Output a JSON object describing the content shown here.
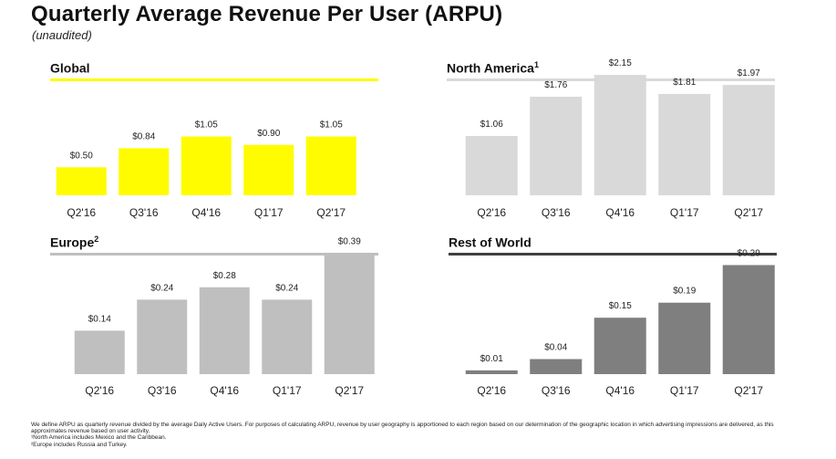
{
  "header": {
    "title": "Quarterly Average Revenue Per User (ARPU)",
    "subtitle": "(unaudited)"
  },
  "colors": {
    "global": "#FFFC00",
    "north_america": "#D9D9D9",
    "europe": "#BFBFBF",
    "rest_of_world": "#7F7F7F",
    "text": "#111111"
  },
  "chart_data": [
    {
      "id": "global",
      "type": "bar",
      "title": "Global",
      "title_sup": "",
      "categories": [
        "Q2'16",
        "Q3'16",
        "Q4'16",
        "Q1'17",
        "Q2'17"
      ],
      "values": [
        0.5,
        0.84,
        1.05,
        0.9,
        1.05
      ],
      "labels": [
        "$0.50",
        "$0.84",
        "$1.05",
        "$0.90",
        "$1.05"
      ],
      "ylim": [
        0,
        2.2
      ],
      "bar_color": "#FFFC00",
      "rule_color": "#FFFC00"
    },
    {
      "id": "north_america",
      "type": "bar",
      "title": "North America",
      "title_sup": "1",
      "categories": [
        "Q2'16",
        "Q3'16",
        "Q4'16",
        "Q1'17",
        "Q2'17"
      ],
      "values": [
        1.06,
        1.76,
        2.15,
        1.81,
        1.97
      ],
      "labels": [
        "$1.06",
        "$1.76",
        "$2.15",
        "$1.81",
        "$1.97"
      ],
      "ylim": [
        0,
        2.2
      ],
      "bar_color": "#D9D9D9",
      "rule_color": "#D9D9D9"
    },
    {
      "id": "europe",
      "type": "bar",
      "title": "Europe",
      "title_sup": "2",
      "categories": [
        "Q2'16",
        "Q3'16",
        "Q4'16",
        "Q1'17",
        "Q2'17"
      ],
      "values": [
        0.14,
        0.24,
        0.28,
        0.24,
        0.39
      ],
      "labels": [
        "$0.14",
        "$0.24",
        "$0.28",
        "$0.24",
        "$0.39"
      ],
      "ylim": [
        0,
        0.4
      ],
      "bar_color": "#BFBFBF",
      "rule_color": "#BFBFBF"
    },
    {
      "id": "rest_of_world",
      "type": "bar",
      "title": "Rest of World",
      "title_sup": "",
      "categories": [
        "Q2'16",
        "Q3'16",
        "Q4'16",
        "Q1'17",
        "Q2'17"
      ],
      "values": [
        0.01,
        0.04,
        0.15,
        0.19,
        0.29
      ],
      "labels": [
        "$0.01",
        "$0.04",
        "$0.15",
        "$0.19",
        "$0.29"
      ],
      "ylim": [
        0,
        0.33
      ],
      "bar_color": "#7F7F7F",
      "rule_color": "#404040"
    }
  ],
  "footnotes": [
    "We define ARPU as quarterly revenue divided by the average Daily Active Users. For purposes of calculating ARPU, revenue by user geography is apportioned to each region based on our determination of the geographic location in which advertising impressions are delivered, as this approximates revenue based on user activity.",
    "¹North America includes Mexico and the Caribbean.",
    "²Europe includes Russia and Turkey."
  ]
}
